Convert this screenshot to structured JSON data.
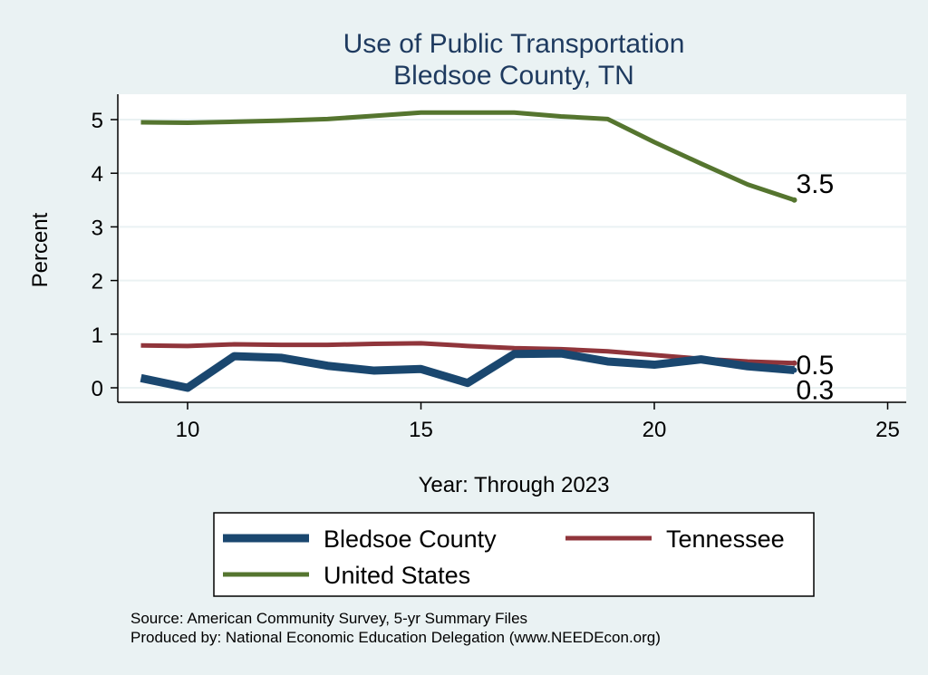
{
  "chart_data": {
    "type": "line",
    "title": "Use of Public Transportation",
    "subtitle": "Bledsoe County, TN",
    "xlabel": "Year: Through 2023",
    "ylabel": "Percent",
    "xlim": [
      8.5,
      25.5
    ],
    "ylim": [
      -0.25,
      5.4
    ],
    "xticks": [
      10,
      15,
      20,
      25
    ],
    "yticks": [
      0,
      1,
      2,
      3,
      4,
      5
    ],
    "grid": true,
    "legend_placement": "bottom",
    "x": [
      9,
      10,
      11,
      12,
      13,
      14,
      15,
      16,
      17,
      18,
      19,
      20,
      21,
      22,
      23
    ],
    "series": [
      {
        "name": "Bledsoe County",
        "color": "#1a476f",
        "width": 9,
        "values": [
          0.18,
          0.0,
          0.59,
          0.56,
          0.41,
          0.32,
          0.35,
          0.09,
          0.63,
          0.64,
          0.49,
          0.43,
          0.53,
          0.4,
          0.33
        ],
        "end_label": "0.3"
      },
      {
        "name": "Tennessee",
        "color": "#90353b",
        "width": 5,
        "values": [
          0.79,
          0.78,
          0.81,
          0.8,
          0.8,
          0.82,
          0.83,
          0.78,
          0.74,
          0.72,
          0.68,
          0.61,
          0.54,
          0.49,
          0.46
        ],
        "end_label": "0.5"
      },
      {
        "name": "United States",
        "color": "#55752f",
        "width": 5,
        "values": [
          4.95,
          4.94,
          4.96,
          4.98,
          5.01,
          5.07,
          5.13,
          5.13,
          5.13,
          5.06,
          5.01,
          4.58,
          4.18,
          3.79,
          3.5
        ],
        "end_label": "3.5"
      }
    ]
  },
  "notes": [
    "Source: American Community Survey, 5-yr Summary Files",
    "Produced by: National Economic Education Delegation (www.NEEDEcon.org)"
  ]
}
